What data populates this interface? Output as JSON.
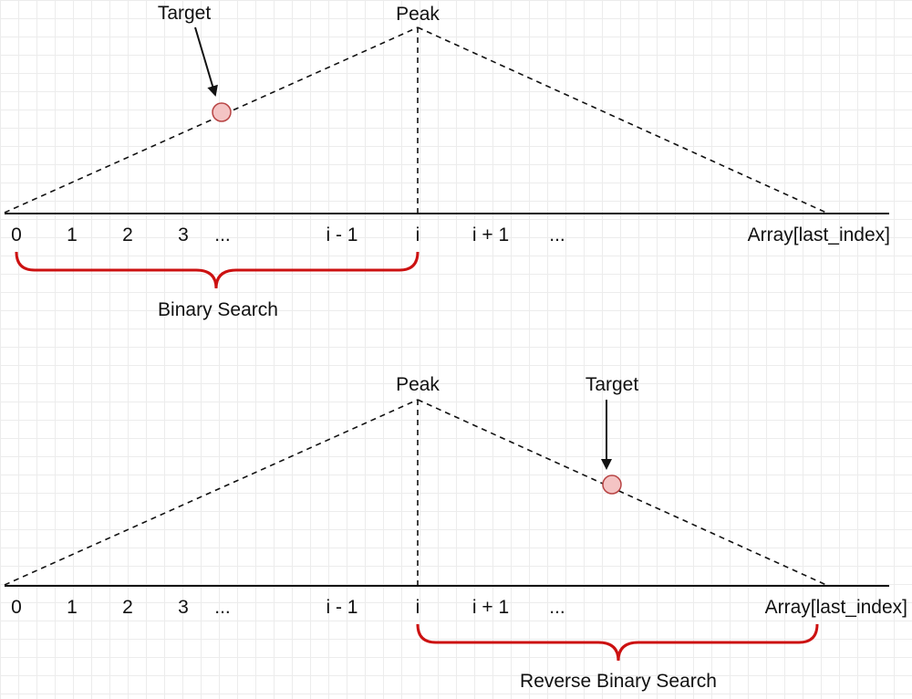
{
  "diagrams": [
    {
      "peak_label": "Peak",
      "target_label": "Target",
      "indices": [
        "0",
        "1",
        "2",
        "3",
        "...",
        "i - 1",
        "i",
        "i + 1",
        "...",
        "Array[last_index]"
      ],
      "search_label": "Binary Search"
    },
    {
      "peak_label": "Peak",
      "target_label": "Target",
      "indices": [
        "0",
        "1",
        "2",
        "3",
        "...",
        "i - 1",
        "i",
        "i + 1",
        "...",
        "Array[last_index]"
      ],
      "search_label": "Reverse Binary Search"
    }
  ],
  "colors": {
    "brace": "#cc1111",
    "target_fill": "#f4c4c4",
    "target_stroke": "#b84444"
  }
}
